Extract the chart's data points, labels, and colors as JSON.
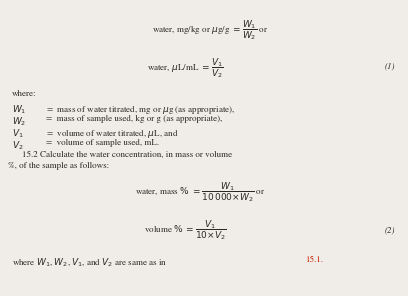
{
  "bg_color": "#f0ede8",
  "text_color": "#2b2826",
  "red_color": "#cc2200",
  "fig_width": 4.08,
  "fig_height": 2.96,
  "dpi": 100,
  "fs_body": 6.5,
  "fs_math": 6.5,
  "fs_eq": 6.5,
  "line1_eq": "water, mg/kg or $\\mu$g/g $=\\dfrac{W_1}{W_2}$ or",
  "line2_eq": "water, $\\mu$L/mL $=\\dfrac{V_1}{V_2}$",
  "line_mass": "water, mass $\\%$ $= \\dfrac{W_1}{10\\,000{\\times}W_2}$ or",
  "line_vol": "volume $\\%$ $= \\dfrac{V_1}{10{\\times}V_2}$",
  "line_where_end": "where $W_1$, $W_2$, $V_1$, and $V_2$ are same as in ",
  "label1": "(1)",
  "label2": "(2)",
  "ref": "15.1."
}
